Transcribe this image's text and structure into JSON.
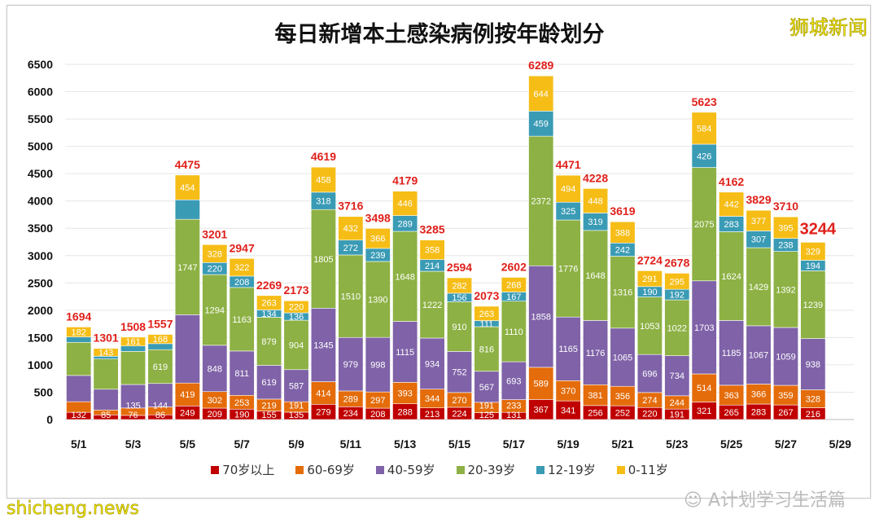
{
  "chart_data": {
    "type": "bar",
    "stacked": true,
    "title": "每日新增本土感染病例按年龄划分",
    "xlabel": "",
    "ylabel": "",
    "ylim": [
      0,
      6500
    ],
    "yticks": [
      0,
      500,
      1000,
      1500,
      2000,
      2500,
      3000,
      3500,
      4000,
      4500,
      5000,
      5500,
      6000,
      6500
    ],
    "grid": true,
    "legend_position": "bottom",
    "x_tick_labels": [
      "5/1",
      "5/3",
      "5/5",
      "5/7",
      "5/9",
      "5/11",
      "5/13",
      "5/15",
      "5/17",
      "5/19",
      "5/21",
      "5/23",
      "5/25",
      "5/27",
      "5/29"
    ],
    "categories": [
      "5/1",
      "5/2",
      "5/3",
      "5/4",
      "5/5",
      "5/6",
      "5/7",
      "5/8",
      "5/9",
      "5/10",
      "5/11",
      "5/12",
      "5/13",
      "5/14",
      "5/15",
      "5/16",
      "5/17",
      "5/18",
      "5/19",
      "5/20",
      "5/21",
      "5/22",
      "5/23",
      "5/24",
      "5/25",
      "5/26",
      "5/27",
      "5/28",
      "5/29"
    ],
    "series": [
      {
        "name": "70岁以上",
        "color": "#c00000",
        "values": [
          132,
          85,
          76,
          86,
          249,
          209,
          190,
          155,
          135,
          279,
          234,
          208,
          288,
          213,
          224,
          125,
          131,
          367,
          341,
          256,
          252,
          220,
          191,
          321,
          265,
          283,
          267,
          216,
          null
        ],
        "labeled": [
          1,
          1,
          1,
          1,
          1,
          1,
          1,
          1,
          1,
          1,
          1,
          1,
          1,
          1,
          1,
          1,
          1,
          1,
          1,
          1,
          1,
          1,
          1,
          1,
          1,
          1,
          1,
          1,
          0
        ]
      },
      {
        "name": "60-69岁",
        "color": "#e46c0a",
        "values": [
          195,
          90,
          135,
          144,
          419,
          302,
          253,
          219,
          191,
          414,
          289,
          297,
          393,
          344,
          270,
          191,
          233,
          589,
          370,
          381,
          356,
          274,
          244,
          514,
          363,
          366,
          359,
          328,
          null
        ],
        "labeled": [
          0,
          0,
          1,
          1,
          1,
          1,
          1,
          1,
          1,
          1,
          1,
          1,
          1,
          1,
          1,
          1,
          1,
          1,
          1,
          1,
          1,
          1,
          1,
          1,
          1,
          1,
          1,
          1,
          0
        ]
      },
      {
        "name": "40-59岁",
        "color": "#7f62a8",
        "values": [
          480,
          380,
          430,
          430,
          1250,
          848,
          811,
          619,
          587,
          1345,
          979,
          998,
          1115,
          934,
          752,
          567,
          693,
          1858,
          1165,
          1176,
          1065,
          696,
          734,
          1703,
          1185,
          1067,
          1059,
          938,
          null
        ],
        "labeled": [
          0,
          0,
          0,
          0,
          0,
          1,
          1,
          1,
          1,
          1,
          1,
          1,
          1,
          1,
          1,
          1,
          1,
          1,
          1,
          1,
          1,
          1,
          1,
          1,
          1,
          1,
          1,
          1,
          0
        ]
      },
      {
        "name": "20-39岁",
        "color": "#8db144",
        "values": [
          605,
          553,
          606,
          619,
          1747,
          1294,
          1163,
          879,
          904,
          1805,
          1510,
          1390,
          1648,
          1222,
          910,
          816,
          1110,
          2372,
          1776,
          1648,
          1316,
          1053,
          1022,
          2075,
          1624,
          1429,
          1392,
          1239,
          null
        ],
        "labeled": [
          0,
          0,
          0,
          1,
          1,
          1,
          1,
          1,
          1,
          1,
          1,
          1,
          1,
          1,
          1,
          1,
          1,
          1,
          1,
          1,
          1,
          1,
          1,
          1,
          1,
          1,
          1,
          1,
          0
        ]
      },
      {
        "name": "12-19岁",
        "color": "#3a9bb5",
        "values": [
          100,
          50,
          100,
          110,
          356,
          220,
          208,
          134,
          136,
          318,
          272,
          239,
          289,
          214,
          156,
          111,
          167,
          459,
          325,
          319,
          242,
          190,
          192,
          426,
          283,
          307,
          238,
          194,
          null
        ],
        "labeled": [
          0,
          0,
          0,
          0,
          0,
          1,
          1,
          1,
          1,
          1,
          1,
          1,
          1,
          1,
          1,
          1,
          1,
          1,
          1,
          1,
          1,
          1,
          1,
          1,
          1,
          1,
          1,
          1,
          0
        ]
      },
      {
        "name": "0-11岁",
        "color": "#f6bd16",
        "values": [
          182,
          143,
          161,
          168,
          454,
          328,
          322,
          263,
          220,
          458,
          432,
          366,
          446,
          358,
          282,
          263,
          268,
          644,
          494,
          448,
          388,
          291,
          295,
          584,
          442,
          377,
          395,
          329,
          null
        ],
        "labeled": [
          1,
          1,
          1,
          1,
          1,
          1,
          1,
          1,
          1,
          1,
          1,
          1,
          1,
          1,
          1,
          1,
          1,
          1,
          1,
          1,
          1,
          1,
          1,
          1,
          1,
          1,
          1,
          1,
          0
        ]
      }
    ],
    "totals": [
      1694,
      1301,
      1508,
      1557,
      4475,
      3201,
      2947,
      2269,
      2173,
      4619,
      3716,
      3498,
      4179,
      3285,
      2594,
      2073,
      2602,
      6289,
      4471,
      4228,
      3619,
      2724,
      2678,
      5623,
      4162,
      3829,
      3710,
      3244,
      null
    ],
    "total_label_color": "#e0201b",
    "highlight_last_total": true
  },
  "watermarks": {
    "top_right": "狮城新闻",
    "bottom_left": "shicheng.news",
    "wechat": "A计划学习生活篇"
  }
}
